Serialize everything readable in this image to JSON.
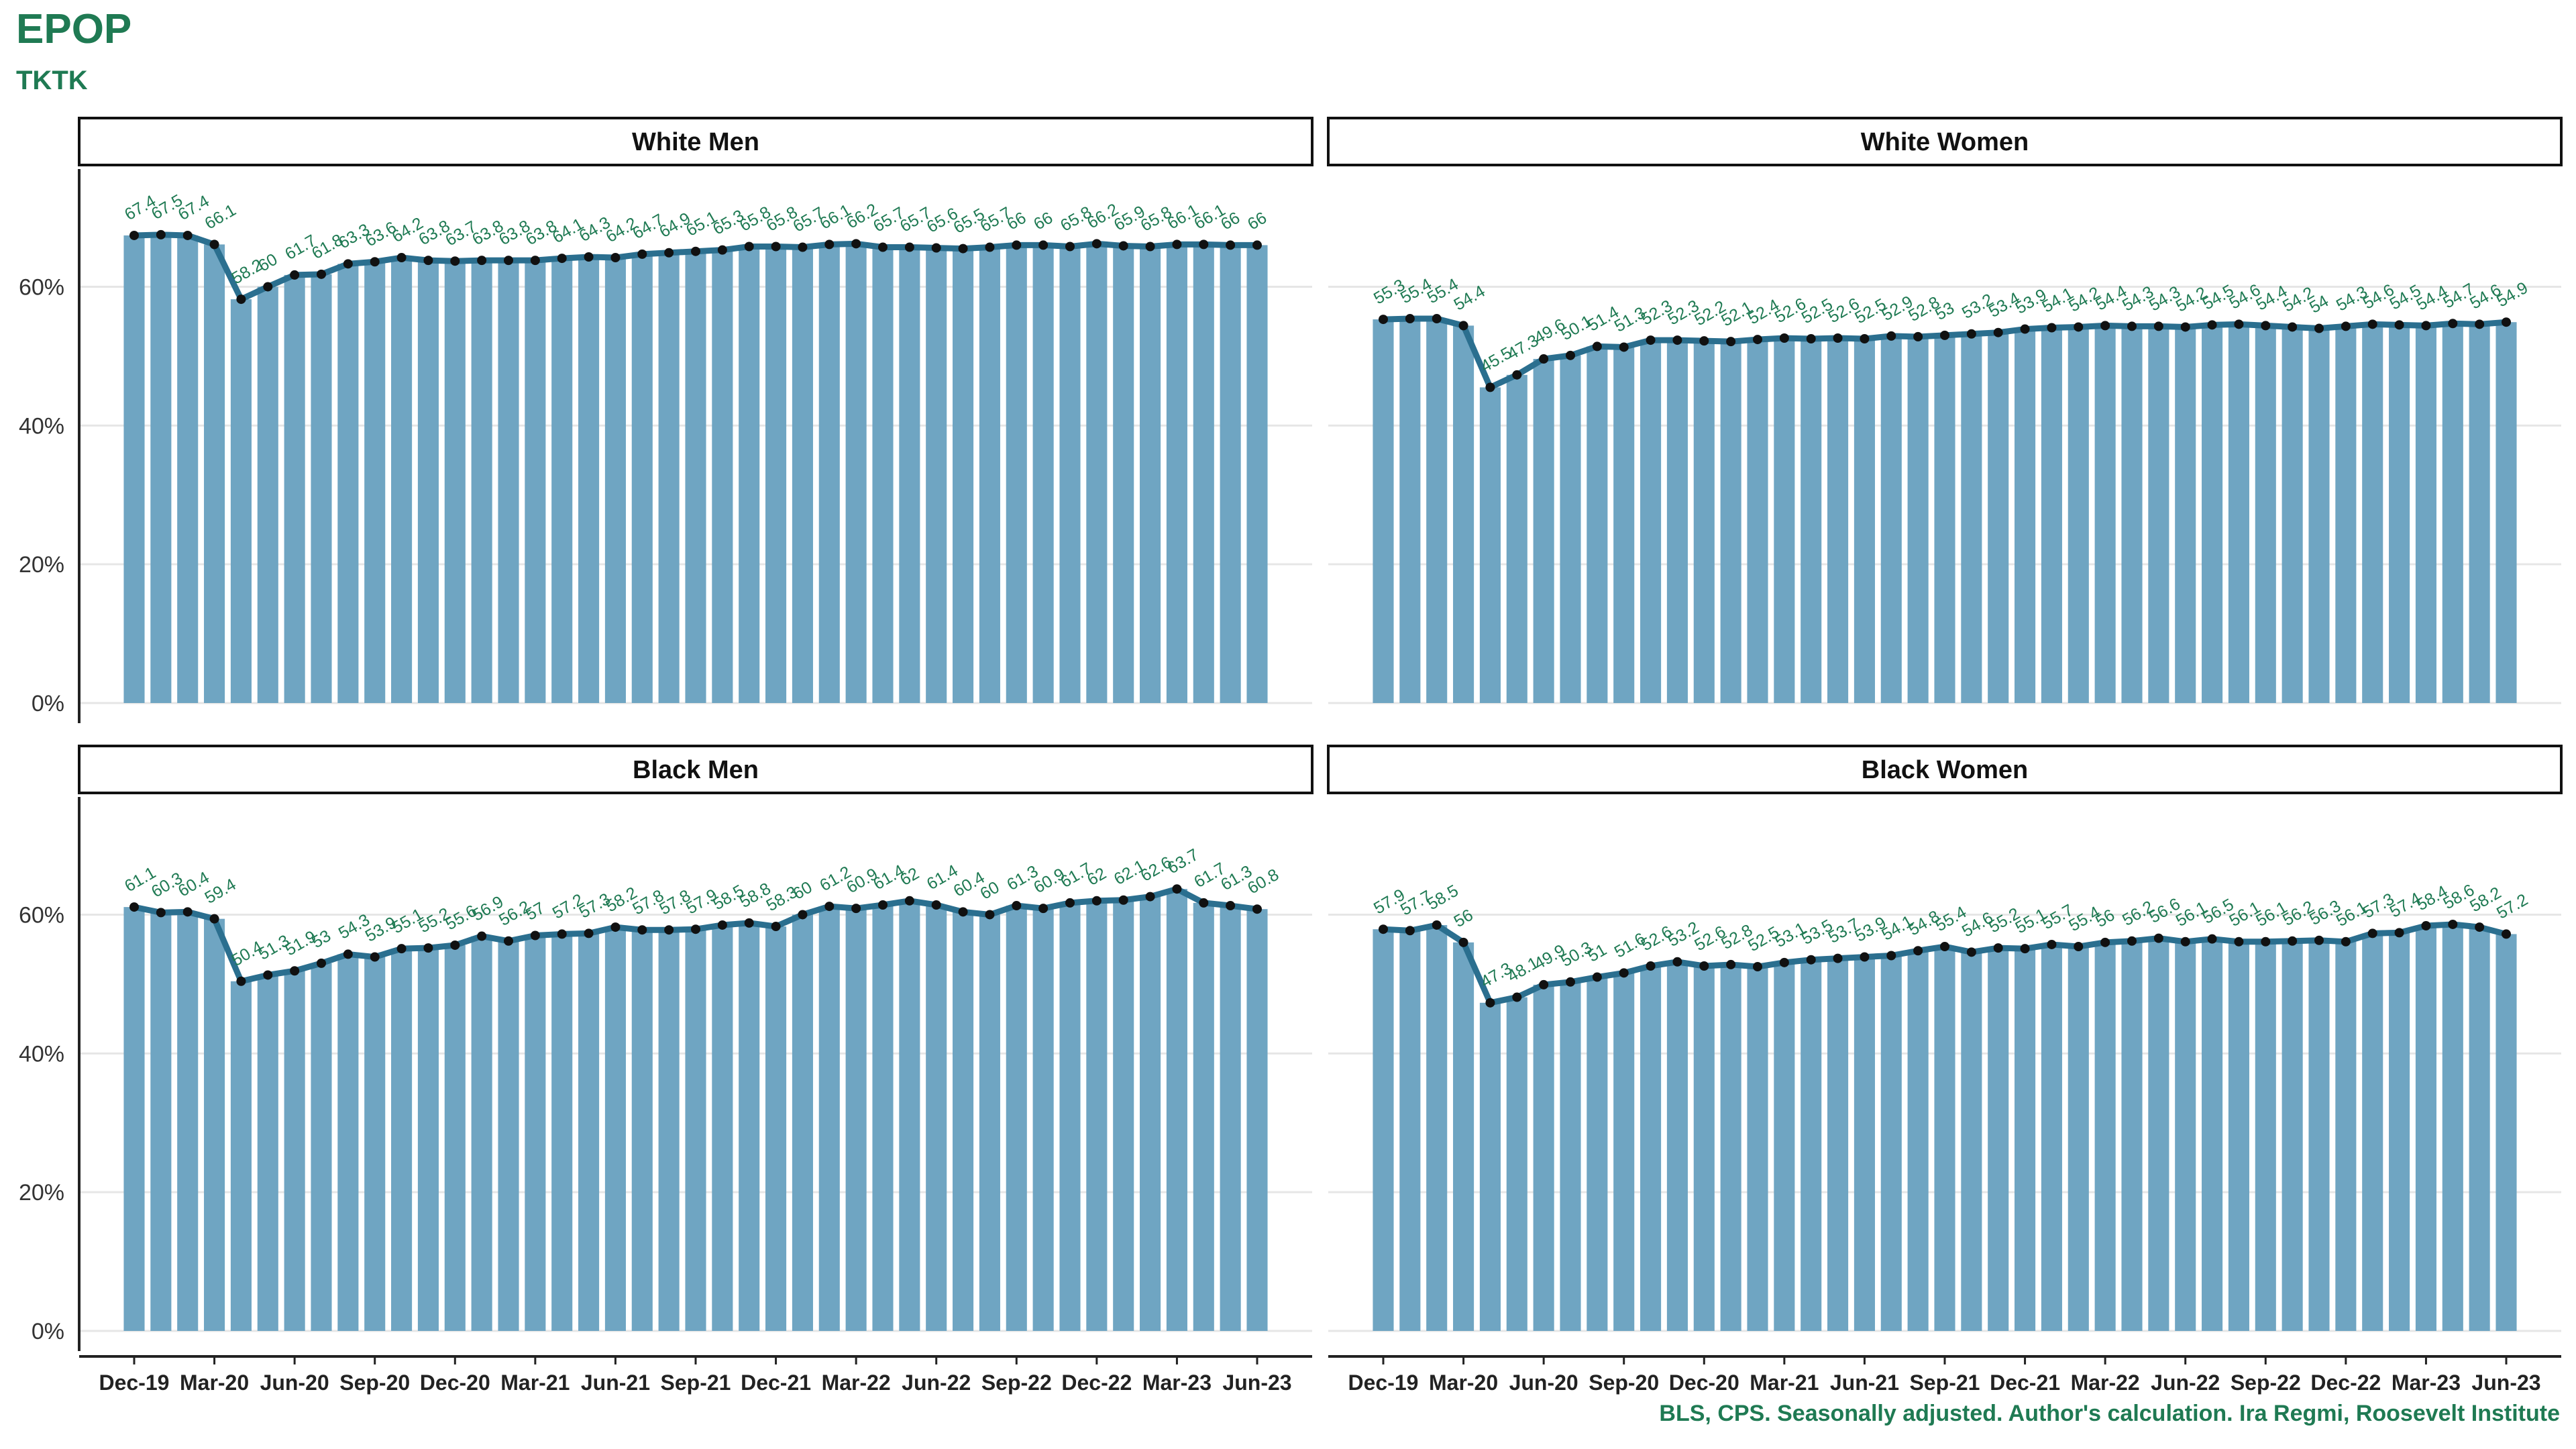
{
  "header": {
    "title": "EPOP",
    "subtitle": "TKTK"
  },
  "caption": "BLS, CPS. Seasonally adjusted. Author's calculation. Ira Regmi, Roosevelt Institute",
  "colors": {
    "bar": "#6fa5c2",
    "line": "#2b6f8f",
    "label": "#1f7a53",
    "grid": "#e6e6e6",
    "axis": "#222222"
  },
  "chart_data": {
    "type": "bar",
    "facet_layout": "2x2",
    "x": [
      "Dec-19",
      "Jan-20",
      "Feb-20",
      "Mar-20",
      "Apr-20",
      "May-20",
      "Jun-20",
      "Jul-20",
      "Aug-20",
      "Sep-20",
      "Oct-20",
      "Nov-20",
      "Dec-20",
      "Jan-21",
      "Feb-21",
      "Mar-21",
      "Apr-21",
      "May-21",
      "Jun-21",
      "Jul-21",
      "Aug-21",
      "Sep-21",
      "Oct-21",
      "Nov-21",
      "Dec-21",
      "Jan-22",
      "Feb-22",
      "Mar-22",
      "Apr-22",
      "May-22",
      "Jun-22",
      "Jul-22",
      "Aug-22",
      "Sep-22",
      "Oct-22",
      "Nov-22",
      "Dec-22",
      "Jan-23",
      "Feb-23",
      "Mar-23",
      "Apr-23",
      "May-23",
      "Jun-23"
    ],
    "x_ticks": [
      "Dec-19",
      "Mar-20",
      "Jun-20",
      "Sep-20",
      "Dec-20",
      "Mar-21",
      "Jun-21",
      "Sep-21",
      "Dec-21",
      "Mar-22",
      "Jun-22",
      "Sep-22",
      "Dec-22",
      "Mar-23",
      "Jun-23"
    ],
    "y_ticks": [
      "0%",
      "20%",
      "40%",
      "60%"
    ],
    "ylim": [
      0,
      76
    ],
    "panels": [
      {
        "title": "White Men",
        "values": [
          67.4,
          67.5,
          67.4,
          66.1,
          58.2,
          60,
          61.7,
          61.8,
          63.3,
          63.6,
          64.2,
          63.8,
          63.7,
          63.8,
          63.8,
          63.8,
          64.1,
          64.3,
          64.2,
          64.7,
          64.9,
          65.1,
          65.3,
          65.8,
          65.8,
          65.7,
          66.1,
          66.2,
          65.7,
          65.7,
          65.6,
          65.5,
          65.7,
          66,
          66,
          65.8,
          66.2,
          65.9,
          65.8,
          66.1,
          66.1,
          66,
          66
        ]
      },
      {
        "title": "White Women",
        "values": [
          55.3,
          55.4,
          55.4,
          54.4,
          45.5,
          47.3,
          49.6,
          50.1,
          51.4,
          51.3,
          52.3,
          52.3,
          52.2,
          52.1,
          52.4,
          52.6,
          52.5,
          52.6,
          52.5,
          52.9,
          52.8,
          53,
          53.2,
          53.4,
          53.9,
          54.1,
          54.2,
          54.4,
          54.3,
          54.3,
          54.2,
          54.5,
          54.6,
          54.4,
          54.2,
          54,
          54.3,
          54.6,
          54.5,
          54.4,
          54.7,
          54.6,
          54.9
        ]
      },
      {
        "title": "Black Men",
        "values": [
          61.1,
          60.3,
          60.4,
          59.4,
          50.4,
          51.3,
          51.9,
          53,
          54.3,
          53.9,
          55.1,
          55.2,
          55.6,
          56.9,
          56.2,
          57,
          57.2,
          57.3,
          58.2,
          57.8,
          57.8,
          57.9,
          58.5,
          58.8,
          58.3,
          60,
          61.2,
          60.9,
          61.4,
          62,
          61.4,
          60.4,
          60,
          61.3,
          60.9,
          61.7,
          62,
          62.1,
          62.6,
          63.7,
          61.7,
          61.3,
          60.8
        ]
      },
      {
        "title": "Black Women",
        "values": [
          57.9,
          57.7,
          58.5,
          56,
          47.3,
          48.1,
          49.9,
          50.3,
          51,
          51.6,
          52.6,
          53.2,
          52.6,
          52.8,
          52.5,
          53.1,
          53.5,
          53.7,
          53.9,
          54.1,
          54.8,
          55.4,
          54.6,
          55.2,
          55.1,
          55.7,
          55.4,
          56,
          56.2,
          56.6,
          56.1,
          56.5,
          56.1,
          56.1,
          56.2,
          56.3,
          56.1,
          57.3,
          57.4,
          58.4,
          58.6,
          58.2,
          57.2
        ]
      }
    ]
  }
}
